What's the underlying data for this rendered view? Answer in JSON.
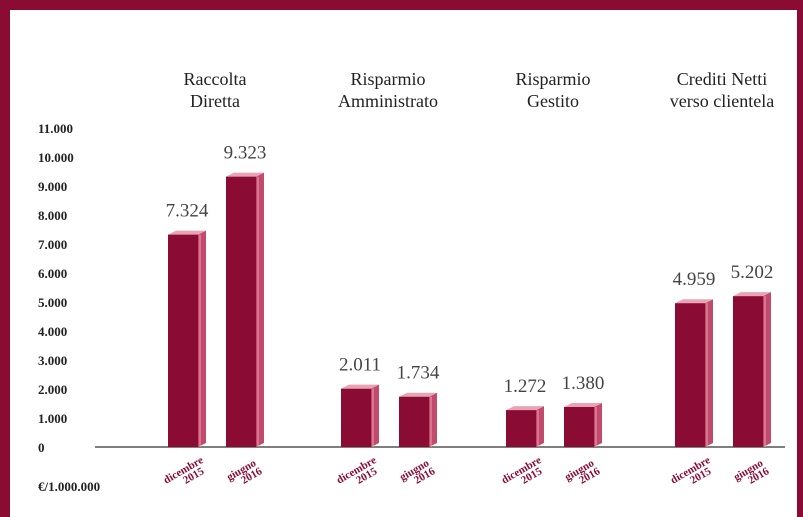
{
  "chart_data": {
    "type": "bar3d",
    "categories": [
      [
        "Raccolta",
        "Diretta"
      ],
      [
        "Risparmio",
        "Amministrato"
      ],
      [
        "Risparmio",
        "Gestito"
      ],
      [
        "Crediti Netti",
        "verso clientela"
      ]
    ],
    "series": [
      {
        "name": "dicembre 2015",
        "color": "#8a0b33",
        "values": [
          7324,
          2011,
          1272,
          4959
        ],
        "value_labels": [
          "7.324",
          "2.011",
          "1.272",
          "4.959"
        ]
      },
      {
        "name": "giugno 2016",
        "color": "#8a0b33",
        "values": [
          9323,
          1734,
          1380,
          5202
        ],
        "value_labels": [
          "9.323",
          "1.734",
          "1.380",
          "5.202"
        ]
      }
    ],
    "ylim": [
      0,
      11000
    ],
    "yticks": [
      0,
      {
        "value": 1000,
        "label": "1.000"
      },
      {
        "value": 2000,
        "label": "2.000"
      },
      {
        "value": 3000,
        "label": "3.000"
      },
      {
        "value": 4000,
        "label": "4.000"
      },
      {
        "value": 5000,
        "label": "5.000"
      },
      {
        "value": 6000,
        "label": "6.000"
      },
      {
        "value": 7000,
        "label": "7.000"
      },
      {
        "value": 8000,
        "label": "8.000"
      },
      {
        "value": 9000,
        "label": "9.000"
      },
      {
        "value": 10000,
        "label": "10.000"
      },
      {
        "value": 11000,
        "label": "11.000"
      }
    ],
    "unit_label": "€/1.000.000"
  }
}
